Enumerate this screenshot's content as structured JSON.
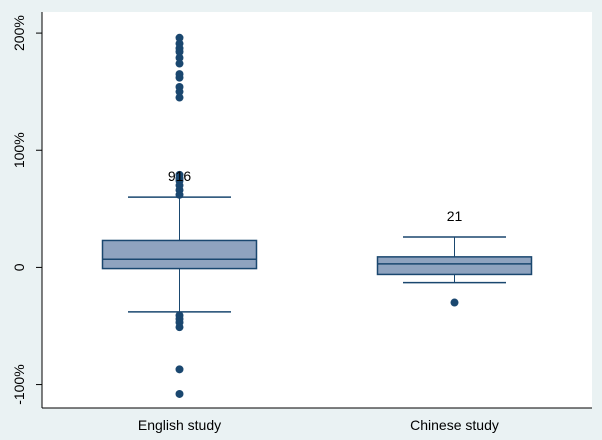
{
  "chart_data": {
    "type": "box",
    "boxes": [
      {
        "name": "English study",
        "whisker_low": -38,
        "q1": -1,
        "median": 7,
        "q3": 23,
        "whisker_high": 60,
        "outliers": [
          196,
          191,
          187,
          184,
          179,
          174,
          165,
          162,
          154,
          150,
          145,
          79,
          76,
          74,
          70,
          66,
          62,
          -41,
          -44,
          -47,
          -51,
          -87,
          -108
        ],
        "count": 916
      },
      {
        "name": "Chinese study",
        "whisker_low": -13,
        "q1": -6,
        "median": 3,
        "q3": 9,
        "whisker_high": 26,
        "outliers": [
          -30
        ],
        "count": 21
      }
    ],
    "ylim": [
      -120,
      218
    ],
    "yticks": [
      {
        "value": -100,
        "label": "-100%"
      },
      0,
      {
        "value": 100,
        "label": "100%"
      },
      {
        "value": 200,
        "label": "200%"
      }
    ],
    "box_color": "#8fa3bf",
    "line_color": "#1a476f"
  }
}
